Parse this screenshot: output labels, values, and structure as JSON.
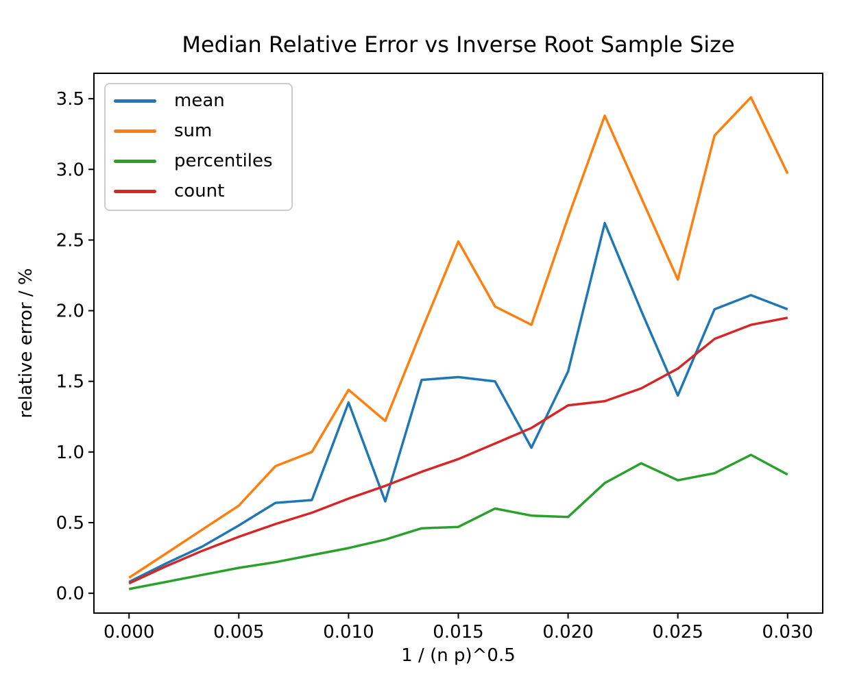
{
  "chart_data": {
    "type": "line",
    "title": "Median Relative Error vs Inverse Root Sample Size",
    "xlabel": "1 / (n p)^0.5",
    "ylabel": "relative error / %",
    "grid": false,
    "legend": {
      "position": "upper left"
    },
    "x": [
      0.0,
      0.00167,
      0.00333,
      0.005,
      0.00667,
      0.00833,
      0.01,
      0.01167,
      0.01333,
      0.015,
      0.01667,
      0.01833,
      0.02,
      0.02167,
      0.02333,
      0.025,
      0.02667,
      0.02833,
      0.03
    ],
    "series": [
      {
        "name": "mean",
        "color": "#1f77b4",
        "values": [
          0.08,
          0.21,
          0.33,
          0.48,
          0.64,
          0.66,
          1.35,
          0.65,
          1.51,
          1.53,
          1.5,
          1.03,
          1.57,
          2.62,
          2.0,
          1.4,
          2.01,
          2.11,
          2.01
        ]
      },
      {
        "name": "sum",
        "color": "#ff7f0e",
        "values": [
          0.11,
          0.28,
          0.45,
          0.62,
          0.9,
          1.0,
          1.44,
          1.22,
          1.86,
          2.49,
          2.03,
          1.9,
          2.66,
          3.38,
          2.8,
          2.22,
          3.24,
          3.51,
          2.97
        ]
      },
      {
        "name": "percentiles",
        "color": "#2ca02c",
        "values": [
          0.03,
          0.08,
          0.13,
          0.18,
          0.22,
          0.27,
          0.32,
          0.38,
          0.46,
          0.47,
          0.6,
          0.55,
          0.54,
          0.78,
          0.92,
          0.8,
          0.85,
          0.98,
          0.84
        ]
      },
      {
        "name": "count",
        "color": "#d62728",
        "values": [
          0.07,
          0.19,
          0.3,
          0.4,
          0.49,
          0.57,
          0.67,
          0.76,
          0.86,
          0.95,
          1.06,
          1.17,
          1.33,
          1.36,
          1.45,
          1.59,
          1.8,
          1.9,
          1.95
        ]
      }
    ],
    "x_axis": {
      "min": -0.0016,
      "max": 0.0316,
      "ticks": [
        0.0,
        0.005,
        0.01,
        0.015,
        0.02,
        0.025,
        0.03
      ],
      "tick_labels": [
        "0.000",
        "0.005",
        "0.010",
        "0.015",
        "0.020",
        "0.025",
        "0.030"
      ]
    },
    "y_axis": {
      "min": -0.14,
      "max": 3.68,
      "ticks": [
        0.0,
        0.5,
        1.0,
        1.5,
        2.0,
        2.5,
        3.0,
        3.5
      ],
      "tick_labels": [
        "0.0",
        "0.5",
        "1.0",
        "1.5",
        "2.0",
        "2.5",
        "3.0",
        "3.5"
      ]
    }
  }
}
